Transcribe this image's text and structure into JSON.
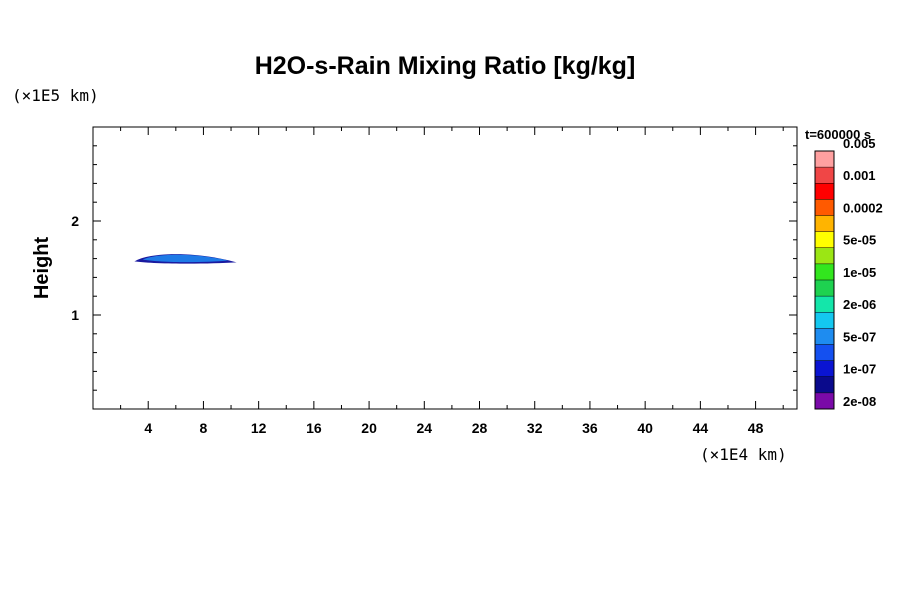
{
  "chart_data": {
    "type": "contour",
    "title": "H2O-s-Rain Mixing Ratio [kg/kg]",
    "xlabel": "",
    "ylabel": "Height",
    "x_unit": "(×1E4 km)",
    "y_unit": "(×1E5 km)",
    "time_label": "t=600000 s",
    "xlim": [
      0,
      51
    ],
    "ylim": [
      0,
      3
    ],
    "x_ticks": [
      4,
      8,
      12,
      16,
      20,
      24,
      28,
      32,
      36,
      40,
      44,
      48
    ],
    "y_ticks": [
      1,
      2
    ],
    "x_minor_step": 2,
    "y_minor_step": 0.2,
    "colorbar": {
      "colors": [
        "#7a0aa8",
        "#0a0a8c",
        "#0a14d2",
        "#1450f0",
        "#1e8cf0",
        "#14c8f0",
        "#14e6aa",
        "#1ed250",
        "#32e61e",
        "#9be614",
        "#ffff00",
        "#ffb400",
        "#ff5a00",
        "#ff0000",
        "#f04646",
        "#ffa0a0"
      ],
      "labels": [
        "2e-08",
        "1e-07",
        "5e-07",
        "2e-06",
        "1e-05",
        "5e-05",
        "0.0002",
        "0.001",
        "0.005"
      ],
      "label_positions": [
        0,
        2,
        4,
        6,
        8,
        10,
        12,
        14,
        16
      ]
    },
    "features": [
      {
        "description_level": "outer",
        "color": "#1a1aa0",
        "x_range": [
          3.0,
          10.4
        ],
        "y_center": 1.57,
        "top_y": 1.67,
        "bottom_y": 1.54
      },
      {
        "description_level": "core",
        "color": "#1e7ae6",
        "x_range": [
          3.6,
          9.8
        ],
        "y_center": 1.59,
        "top_y": 1.655,
        "bottom_y": 1.555
      }
    ]
  }
}
